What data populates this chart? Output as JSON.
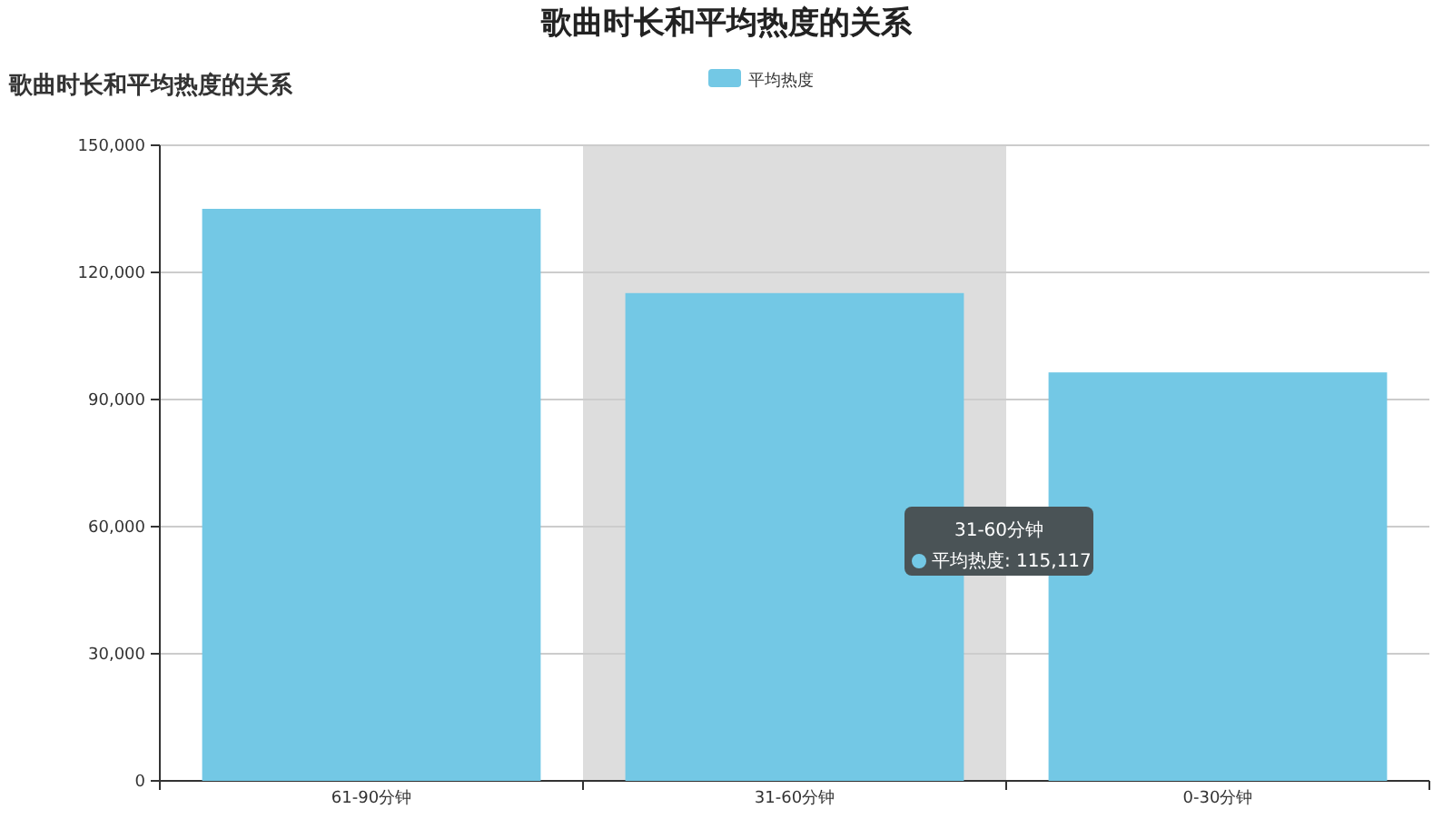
{
  "chart_data": {
    "type": "bar",
    "title": "歌曲时长和平均热度的关系",
    "subtitle": "歌曲时长和平均热度的关系",
    "categories": [
      "61-90分钟",
      "31-60分钟",
      "0-30分钟"
    ],
    "series": [
      {
        "name": "平均热度",
        "color": "#73c8e5",
        "values": [
          135000,
          115117,
          96400
        ]
      }
    ],
    "ylim": [
      0,
      150000
    ],
    "yticks": [
      {
        "value": 0,
        "label": "0"
      },
      {
        "value": 30000,
        "label": "30,000"
      },
      {
        "value": 60000,
        "label": "60,000"
      },
      {
        "value": 90000,
        "label": "90,000"
      },
      {
        "value": 120000,
        "label": "120,000"
      },
      {
        "value": 150000,
        "label": "150,000"
      }
    ],
    "grid": "y",
    "legend": "top",
    "bands": [
      {
        "axis": "x",
        "from": "31-60分钟",
        "to": "31-60分钟",
        "color": "#dddddd"
      }
    ],
    "annotations": [
      "31-60分钟",
      "平均热度: 115,117"
    ]
  }
}
